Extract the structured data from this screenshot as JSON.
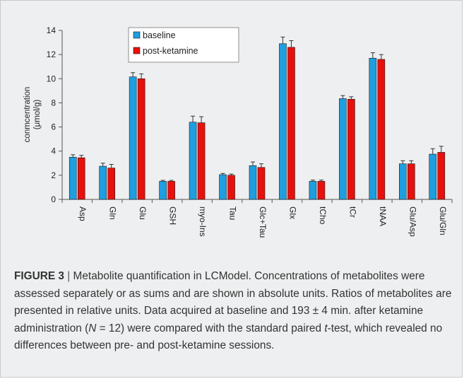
{
  "chart_data": {
    "type": "bar",
    "categories": [
      "Asp",
      "Gln",
      "Glu",
      "GSH",
      "myo-Ins",
      "Tau",
      "Glc+Tau",
      "Glx",
      "tCho",
      "tCr",
      "tNAA",
      "Glu/Asp",
      "Glu/Gln"
    ],
    "series": [
      {
        "name": "baseline",
        "color": "#1f9ee0",
        "values": [
          3.5,
          2.75,
          10.15,
          1.5,
          6.4,
          2.05,
          2.8,
          12.9,
          1.5,
          8.35,
          11.7,
          2.95,
          3.75
        ],
        "errors": [
          0.2,
          0.25,
          0.35,
          0.08,
          0.5,
          0.1,
          0.3,
          0.55,
          0.1,
          0.25,
          0.45,
          0.25,
          0.45
        ]
      },
      {
        "name": "post-ketamine",
        "color": "#e8100c",
        "values": [
          3.45,
          2.6,
          10.0,
          1.5,
          6.35,
          2.0,
          2.65,
          12.6,
          1.5,
          8.3,
          11.6,
          2.95,
          3.9
        ],
        "errors": [
          0.2,
          0.3,
          0.4,
          0.08,
          0.5,
          0.1,
          0.3,
          0.55,
          0.1,
          0.2,
          0.4,
          0.25,
          0.5
        ]
      }
    ],
    "ylabel_line1": "conmcentration",
    "ylabel_line2": "(μmol/g)",
    "ylim": [
      0,
      14
    ],
    "yticks": [
      0,
      2,
      4,
      6,
      8,
      10,
      12,
      14
    ],
    "grid": false,
    "legend_position": "top-left"
  },
  "caption": {
    "figure_label": "FIGURE 3",
    "separator": " | ",
    "text_1": "Metabolite quantification in LCModel. Concentrations of metabolites were assessed separately or as sums and are shown in absolute units. Ratios of metabolites are presented in relative units. Data acquired at baseline and 193 ± 4 min. after ketamine administration (",
    "n_italic": "N",
    "text_2": " = 12) were compared with the standard paired ",
    "t_italic": "t",
    "text_3": "-test, which revealed no differences between pre- and post-ketamine sessions."
  }
}
